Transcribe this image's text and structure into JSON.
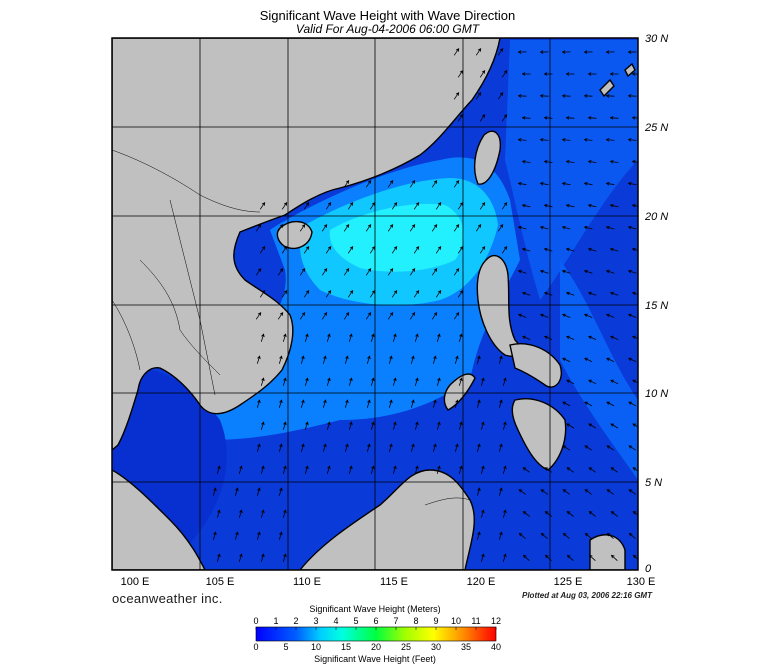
{
  "title": "Significant Wave Height with Wave Direction",
  "subtitle": "Valid For Aug-04-2006 06:00 GMT",
  "brand": "oceanweather inc.",
  "plotted": "Plotted at Aug 03, 2006 22:16 GMT",
  "lat_labels": [
    "30 N",
    "25 N",
    "20 N",
    "15 N",
    "10 N",
    "5 N",
    "0"
  ],
  "lon_labels": [
    "100 E",
    "105 E",
    "110 E",
    "115 E",
    "120 E",
    "125 E",
    "130 E"
  ],
  "colorbar": {
    "title_meters": "Significant Wave Height (Meters)",
    "title_feet": "Significant Wave Height (Feet)",
    "meters": [
      "0",
      "1",
      "2",
      "3",
      "4",
      "5",
      "6",
      "7",
      "8",
      "9",
      "10",
      "11",
      "12"
    ],
    "feet": [
      "0",
      "5",
      "10",
      "15",
      "20",
      "25",
      "30",
      "35",
      "40"
    ]
  },
  "colors": {
    "land": "#c0c0c0",
    "coast": "#000000",
    "sea_deep": "#0530d6",
    "sea_mid": "#0a7dff",
    "sea_high": "#00e5ff"
  }
}
